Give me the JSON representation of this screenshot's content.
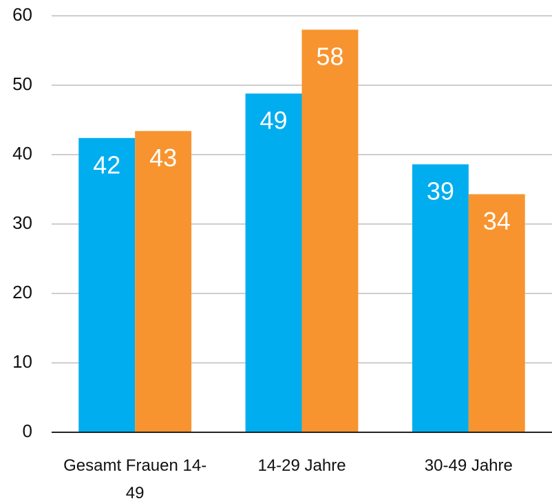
{
  "chart_data": {
    "type": "bar",
    "categories": [
      "Gesamt Frauen 14-49",
      "14-29 Jahre",
      "30-49 Jahre"
    ],
    "series": [
      {
        "color": "#00adef",
        "values": [
          42.4,
          48.8,
          38.6
        ],
        "value_labels": [
          "42",
          "49",
          "39"
        ]
      },
      {
        "color": "#f7942f",
        "values": [
          43.4,
          58,
          34.3
        ],
        "value_labels": [
          "43",
          "58",
          "34"
        ]
      }
    ],
    "ylim": [
      0,
      60
    ],
    "yticks": [
      0,
      10,
      20,
      30,
      40,
      50,
      60
    ],
    "grid": true
  }
}
